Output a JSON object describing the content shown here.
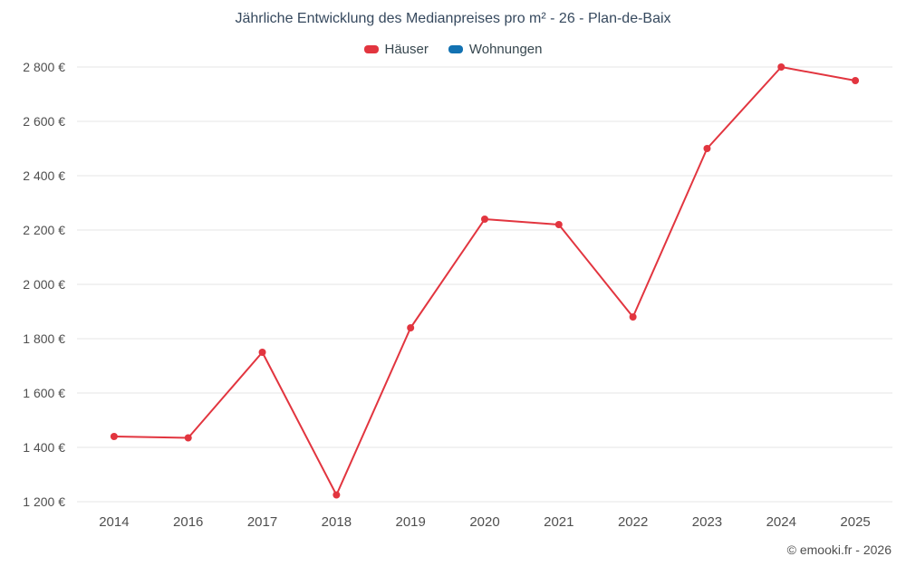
{
  "chart_data": {
    "type": "line",
    "title": "Jährliche Entwicklung des Medianpreises pro m² - 26 - Plan-de-Baix",
    "categories": [
      "2014",
      "2016",
      "2017",
      "2018",
      "2019",
      "2020",
      "2021",
      "2022",
      "2023",
      "2024",
      "2025"
    ],
    "series": [
      {
        "name": "Häuser",
        "color": "#e2353f",
        "values": [
          1440,
          1435,
          1750,
          1225,
          1840,
          2240,
          2220,
          1880,
          2500,
          2800,
          2750
        ]
      },
      {
        "name": "Wohnungen",
        "color": "#1372b2",
        "values": []
      }
    ],
    "xlabel": "",
    "ylabel": "",
    "ylim": [
      1200,
      2800
    ],
    "ytick_step": 200,
    "ytick_suffix": " €",
    "grid": "horizontal",
    "legend_position": "top",
    "marker": "circle"
  },
  "footer": {
    "copyright": "© emooki.fr - 2026"
  }
}
